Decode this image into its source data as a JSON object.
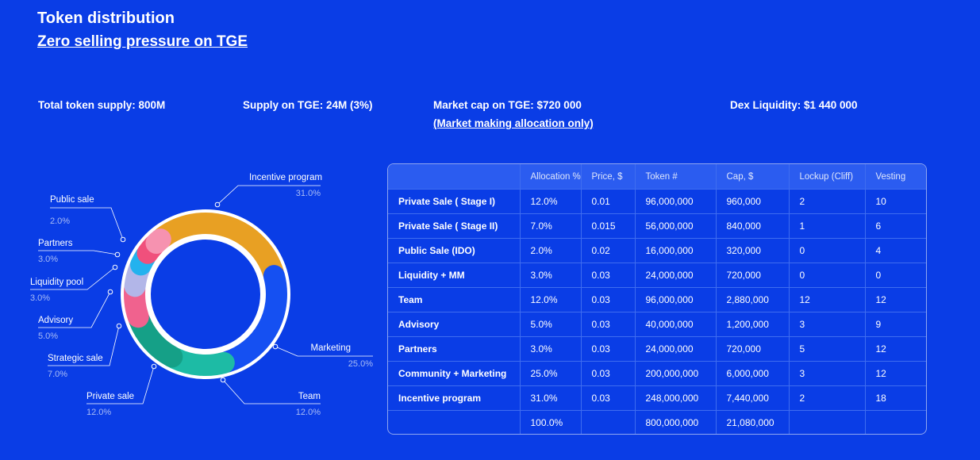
{
  "header": {
    "title": "Token distribution",
    "subtitle": "Zero selling pressure on TGE"
  },
  "stats": {
    "total_supply": "Total token supply: 800M",
    "supply_tge": "Supply on TGE: 24M (3%)",
    "market_cap": "Market cap on TGE: $720 000",
    "market_cap_note": "(Market making allocation only)",
    "dex_liquidity": "Dex Liquidity: $1 440 000"
  },
  "chart_data": {
    "type": "pie",
    "variant": "donut",
    "slices": [
      {
        "name": "Incentive program",
        "value": 31.0,
        "label": "31.0%",
        "color": "#e8a023"
      },
      {
        "name": "Marketing",
        "value": 25.0,
        "label": "25.0%",
        "color": "#1550f2"
      },
      {
        "name": "Team",
        "value": 12.0,
        "label": "12.0%",
        "color": "#1dbba5"
      },
      {
        "name": "Private sale",
        "value": 12.0,
        "label": "12.0%",
        "color": "#15a087"
      },
      {
        "name": "Strategic sale",
        "value": 7.0,
        "label": "7.0%",
        "color": "#f0628e"
      },
      {
        "name": "Advisory",
        "value": 5.0,
        "label": "5.0%",
        "color": "#b2b6e8"
      },
      {
        "name": "Liquidity pool",
        "value": 3.0,
        "label": "3.0%",
        "color": "#23b2ee"
      },
      {
        "name": "Partners",
        "value": 3.0,
        "label": "3.0%",
        "color": "#f0507c"
      },
      {
        "name": "Public sale",
        "value": 2.0,
        "label": "2.0%",
        "color": "#f692b0"
      }
    ]
  },
  "table": {
    "headers": [
      "",
      "Allocation %",
      "Price, $",
      "Token #",
      "Cap, $",
      "Lockup (Cliff)",
      "Vesting"
    ],
    "rows": [
      [
        "Private Sale ( Stage I)",
        "12.0%",
        "0.01",
        "96,000,000",
        "960,000",
        "2",
        "10"
      ],
      [
        "Private Sale ( Stage II)",
        "7.0%",
        "0.015",
        "56,000,000",
        "840,000",
        "1",
        "6"
      ],
      [
        "Public Sale (IDO)",
        "2.0%",
        "0.02",
        "16,000,000",
        "320,000",
        "0",
        "4"
      ],
      [
        "Liquidity + MM",
        "3.0%",
        "0.03",
        "24,000,000",
        "720,000",
        "0",
        "0"
      ],
      [
        "Team",
        "12.0%",
        "0.03",
        "96,000,000",
        "2,880,000",
        "12",
        "12"
      ],
      [
        "Advisory",
        "5.0%",
        "0.03",
        "40,000,000",
        "1,200,000",
        "3",
        "9"
      ],
      [
        "Partners",
        "3.0%",
        "0.03",
        "24,000,000",
        "720,000",
        "5",
        "12"
      ],
      [
        "Community + Marketing",
        "25.0%",
        "0.03",
        "200,000,000",
        "6,000,000",
        "3",
        "12"
      ],
      [
        "Incentive program",
        "31.0%",
        "0.03",
        "248,000,000",
        "7,440,000",
        "2",
        "18"
      ],
      [
        "",
        "100.0%",
        "",
        "800,000,000",
        "21,080,000",
        "",
        ""
      ]
    ]
  },
  "colors": {
    "background": "#0a3de6",
    "table_header": "#2b5cf0",
    "grid": "#3f6df0",
    "label_value": "#a9bcf5"
  }
}
